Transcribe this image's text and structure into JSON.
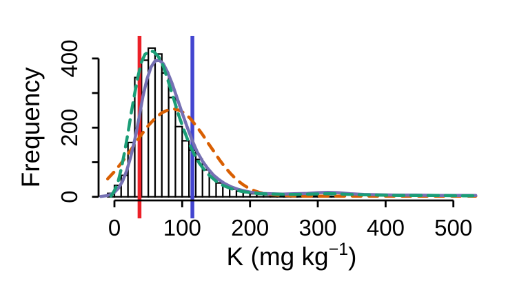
{
  "page": {
    "background": "#ffffff"
  },
  "chart_data": {
    "type": "histogram",
    "title": "",
    "ylabel": "Frequency",
    "xlabel_parts": {
      "base": "K (mg kg",
      "superscript": "−1",
      "close": ")"
    },
    "x_ticks": [
      0,
      100,
      200,
      300,
      400,
      500
    ],
    "x_tick_labels": [
      "0",
      "100",
      "200",
      "300",
      "400",
      "500"
    ],
    "y_ticks": [
      0,
      100,
      200,
      300,
      400
    ],
    "y_tick_labels": [
      "0",
      "",
      "200",
      "",
      "400"
    ],
    "xlim": [
      -25,
      535
    ],
    "ylim": [
      0,
      455
    ],
    "grid": false,
    "legend": "none",
    "bar_fill": "#ffffff",
    "bar_stroke": "#000000",
    "bins": {
      "start": -10,
      "width": 10,
      "frequencies": [
        10,
        33,
        62,
        157,
        345,
        395,
        430,
        413,
        358,
        287,
        203,
        162,
        135,
        108,
        78,
        57,
        40,
        30,
        22,
        16,
        12,
        9,
        7,
        6,
        5,
        4,
        3,
        3,
        2,
        2,
        2,
        1,
        1,
        1
      ]
    },
    "vlines": [
      {
        "name": "red-reference-line",
        "x": 37,
        "color": "#ec2028"
      },
      {
        "name": "blue-reference-line",
        "x": 115,
        "color": "#4345d0"
      }
    ],
    "series": [
      {
        "name": "orange-dashed-normal-fit",
        "color": "#d95f02",
        "style": "dashed",
        "points": [
          [
            -10,
            52
          ],
          [
            0,
            73
          ],
          [
            10,
            97
          ],
          [
            20,
            124
          ],
          [
            30,
            152
          ],
          [
            40,
            180
          ],
          [
            50,
            206
          ],
          [
            60,
            227
          ],
          [
            70,
            243
          ],
          [
            80,
            252
          ],
          [
            88,
            254
          ],
          [
            96,
            250
          ],
          [
            105,
            240
          ],
          [
            113,
            224
          ],
          [
            121,
            204
          ],
          [
            130,
            180
          ],
          [
            138,
            156
          ],
          [
            147,
            130
          ],
          [
            155,
            107
          ],
          [
            163,
            86
          ],
          [
            172,
            66
          ],
          [
            180,
            50
          ],
          [
            189,
            36
          ],
          [
            197,
            26
          ],
          [
            206,
            18
          ],
          [
            215,
            12
          ],
          [
            224,
            8
          ],
          [
            234,
            6
          ],
          [
            245,
            4
          ],
          [
            258,
            3
          ],
          [
            275,
            2
          ],
          [
            300,
            2
          ],
          [
            330,
            2
          ],
          [
            365,
            2
          ],
          [
            400,
            2
          ],
          [
            440,
            2
          ],
          [
            480,
            2
          ],
          [
            510,
            2
          ],
          [
            533,
            2
          ]
        ]
      },
      {
        "name": "purple-solid-density",
        "color": "#7570b3",
        "style": "solid",
        "points": [
          [
            -20,
            1
          ],
          [
            -12,
            3
          ],
          [
            -5,
            7
          ],
          [
            0,
            13
          ],
          [
            6,
            25
          ],
          [
            12,
            45
          ],
          [
            18,
            75
          ],
          [
            24,
            115
          ],
          [
            30,
            165
          ],
          [
            36,
            225
          ],
          [
            42,
            290
          ],
          [
            48,
            340
          ],
          [
            54,
            375
          ],
          [
            60,
            393
          ],
          [
            66,
            395
          ],
          [
            72,
            385
          ],
          [
            78,
            362
          ],
          [
            85,
            328
          ],
          [
            92,
            288
          ],
          [
            100,
            242
          ],
          [
            108,
            198
          ],
          [
            115,
            162
          ],
          [
            122,
            130
          ],
          [
            130,
            103
          ],
          [
            138,
            81
          ],
          [
            146,
            63
          ],
          [
            154,
            50
          ],
          [
            162,
            39
          ],
          [
            172,
            29
          ],
          [
            182,
            22
          ],
          [
            192,
            17
          ],
          [
            202,
            13
          ],
          [
            215,
            10
          ],
          [
            230,
            9
          ],
          [
            248,
            8
          ],
          [
            265,
            9
          ],
          [
            285,
            10
          ],
          [
            300,
            12
          ],
          [
            315,
            13
          ],
          [
            330,
            12
          ],
          [
            348,
            9
          ],
          [
            368,
            7
          ],
          [
            390,
            6
          ],
          [
            415,
            5
          ],
          [
            445,
            5
          ],
          [
            475,
            4
          ],
          [
            505,
            4
          ],
          [
            533,
            4
          ]
        ]
      },
      {
        "name": "teal-dashed-density",
        "color": "#1b9e77",
        "style": "dashed",
        "points": [
          [
            -5,
            2
          ],
          [
            0,
            18
          ],
          [
            5,
            40
          ],
          [
            10,
            80
          ],
          [
            15,
            130
          ],
          [
            20,
            185
          ],
          [
            25,
            245
          ],
          [
            30,
            300
          ],
          [
            35,
            350
          ],
          [
            40,
            390
          ],
          [
            45,
            412
          ],
          [
            52,
            422
          ],
          [
            58,
            420
          ],
          [
            65,
            405
          ],
          [
            72,
            378
          ],
          [
            80,
            330
          ],
          [
            88,
            280
          ],
          [
            95,
            235
          ],
          [
            102,
            196
          ],
          [
            110,
            155
          ],
          [
            118,
            122
          ],
          [
            125,
            98
          ],
          [
            133,
            77
          ],
          [
            140,
            62
          ],
          [
            150,
            45
          ],
          [
            160,
            33
          ],
          [
            170,
            25
          ],
          [
            180,
            19
          ],
          [
            190,
            15
          ],
          [
            200,
            12
          ],
          [
            215,
            9
          ],
          [
            230,
            8
          ],
          [
            250,
            7
          ],
          [
            270,
            7
          ],
          [
            290,
            8
          ],
          [
            310,
            9
          ],
          [
            325,
            9
          ],
          [
            345,
            7
          ],
          [
            365,
            6
          ],
          [
            390,
            5
          ],
          [
            420,
            4
          ],
          [
            450,
            4
          ],
          [
            480,
            4
          ],
          [
            505,
            3
          ],
          [
            533,
            3
          ]
        ]
      }
    ]
  }
}
